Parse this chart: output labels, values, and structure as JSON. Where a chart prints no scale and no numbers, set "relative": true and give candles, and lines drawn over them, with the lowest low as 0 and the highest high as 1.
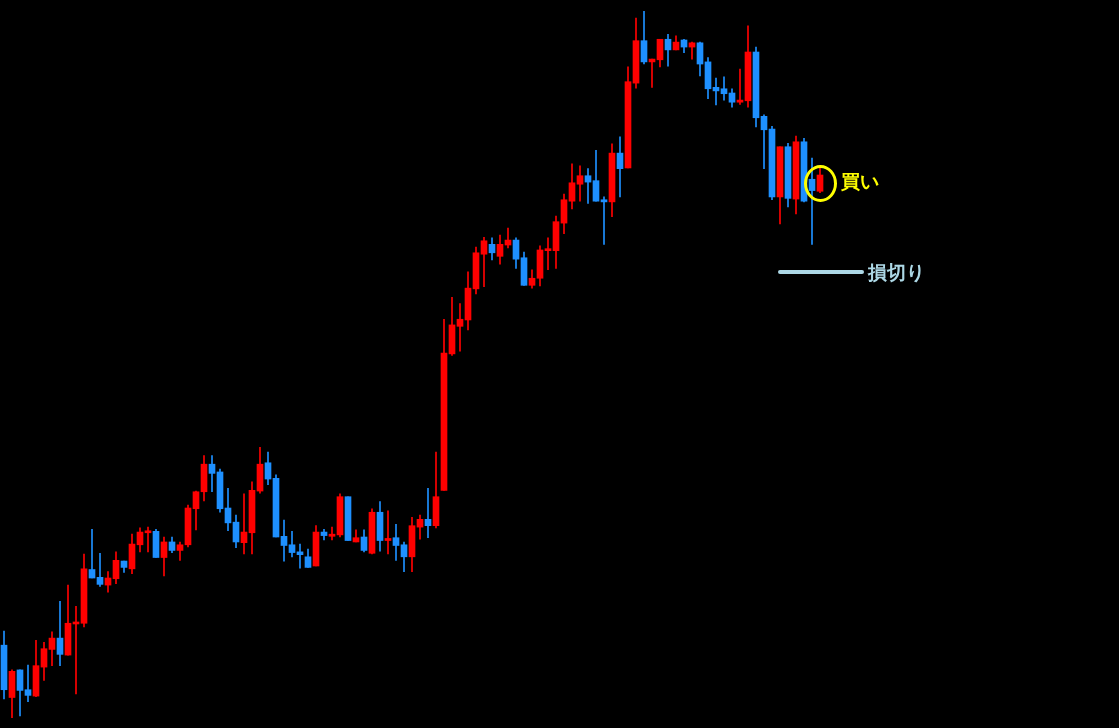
{
  "chart_data": {
    "type": "candlestick",
    "relative": true,
    "categories": [
      null,
      null,
      null,
      null,
      null,
      null,
      null,
      null,
      null,
      null,
      null,
      null,
      null,
      null,
      null,
      null,
      null,
      null,
      null,
      null,
      null,
      null,
      null,
      null,
      null,
      null,
      null,
      null,
      null,
      null,
      null,
      null,
      null,
      null,
      null,
      null,
      null,
      null,
      null,
      null,
      null,
      null,
      null,
      null,
      null,
      null,
      null,
      null,
      null,
      null,
      null,
      null,
      null,
      null,
      null,
      null,
      null,
      null,
      null,
      null,
      null,
      null,
      null,
      null,
      null,
      null,
      null,
      null,
      null,
      null,
      null,
      null,
      null,
      null,
      null,
      null,
      null,
      null,
      null,
      null,
      null,
      null,
      null,
      null,
      null,
      null,
      null,
      null,
      null,
      null,
      null,
      null,
      null,
      null,
      null,
      null,
      null,
      null,
      null,
      null,
      null,
      null,
      null
    ],
    "ohlc": [
      [
        0.103,
        0.123,
        0.027,
        0.04
      ],
      [
        0.029,
        0.068,
        0,
        0.066
      ],
      [
        0.068,
        0.068,
        0.003,
        0.039
      ],
      [
        0.04,
        0.075,
        0.023,
        0.032
      ],
      [
        0.031,
        0.11,
        0.03,
        0.074
      ],
      [
        0.072,
        0.107,
        0.053,
        0.098
      ],
      [
        0.097,
        0.122,
        0.074,
        0.113
      ],
      [
        0.113,
        0.165,
        0.074,
        0.09
      ],
      [
        0.089,
        0.188,
        0.089,
        0.134
      ],
      [
        0.133,
        0.158,
        0.034,
        0.134
      ],
      [
        0.134,
        0.232,
        0.129,
        0.211
      ],
      [
        0.21,
        0.267,
        0.198,
        0.198
      ],
      [
        0.199,
        0.233,
        0.186,
        0.189
      ],
      [
        0.188,
        0.207,
        0.178,
        0.198
      ],
      [
        0.197,
        0.235,
        0.19,
        0.223
      ],
      [
        0.222,
        0.222,
        0.206,
        0.213
      ],
      [
        0.211,
        0.26,
        0.204,
        0.246
      ],
      [
        0.245,
        0.269,
        0.235,
        0.263
      ],
      [
        0.262,
        0.27,
        0.235,
        0.264
      ],
      [
        0.264,
        0.267,
        0.227,
        0.227
      ],
      [
        0.227,
        0.256,
        0.201,
        0.249
      ],
      [
        0.249,
        0.256,
        0.234,
        0.237
      ],
      [
        0.237,
        0.249,
        0.223,
        0.245
      ],
      [
        0.245,
        0.301,
        0.242,
        0.297
      ],
      [
        0.296,
        0.321,
        0.266,
        0.32
      ],
      [
        0.32,
        0.371,
        0.307,
        0.359
      ],
      [
        0.359,
        0.371,
        0.32,
        0.346
      ],
      [
        0.348,
        0.352,
        0.291,
        0.296
      ],
      [
        0.297,
        0.325,
        0.265,
        0.276
      ],
      [
        0.277,
        0.287,
        0.241,
        0.249
      ],
      [
        0.248,
        0.317,
        0.232,
        0.263
      ],
      [
        0.262,
        0.334,
        0.232,
        0.322
      ],
      [
        0.321,
        0.383,
        0.318,
        0.359
      ],
      [
        0.361,
        0.376,
        0.33,
        0.338
      ],
      [
        0.339,
        0.344,
        0.256,
        0.256
      ],
      [
        0.257,
        0.28,
        0.222,
        0.244
      ],
      [
        0.245,
        0.264,
        0.228,
        0.234
      ],
      [
        0.235,
        0.246,
        0.212,
        0.231
      ],
      [
        0.228,
        0.239,
        0.213,
        0.213
      ],
      [
        0.215,
        0.272,
        0.215,
        0.263
      ],
      [
        0.263,
        0.267,
        0.252,
        0.258
      ],
      [
        0.257,
        0.27,
        0.252,
        0.26
      ],
      [
        0.259,
        0.317,
        0.256,
        0.313
      ],
      [
        0.313,
        0.313,
        0.251,
        0.251
      ],
      [
        0.249,
        0.266,
        0.249,
        0.255
      ],
      [
        0.256,
        0.266,
        0.235,
        0.237
      ],
      [
        0.233,
        0.296,
        0.232,
        0.291
      ],
      [
        0.291,
        0.306,
        0.236,
        0.251
      ],
      [
        0.251,
        0.293,
        0.232,
        0.254
      ],
      [
        0.255,
        0.274,
        0.223,
        0.244
      ],
      [
        0.245,
        0.249,
        0.207,
        0.228
      ],
      [
        0.228,
        0.284,
        0.207,
        0.272
      ],
      [
        0.27,
        0.287,
        0.253,
        0.281
      ],
      [
        0.281,
        0.325,
        0.255,
        0.272
      ],
      [
        0.272,
        0.376,
        0.269,
        0.313
      ],
      [
        0.322,
        0.564,
        0.322,
        0.516
      ],
      [
        0.515,
        0.595,
        0.513,
        0.556
      ],
      [
        0.554,
        0.586,
        0.519,
        0.564
      ],
      [
        0.563,
        0.631,
        0.549,
        0.608
      ],
      [
        0.607,
        0.666,
        0.6,
        0.658
      ],
      [
        0.656,
        0.68,
        0.61,
        0.675
      ],
      [
        0.67,
        0.679,
        0.648,
        0.658
      ],
      [
        0.653,
        0.683,
        0.642,
        0.67
      ],
      [
        0.669,
        0.693,
        0.665,
        0.676
      ],
      [
        0.676,
        0.679,
        0.636,
        0.649
      ],
      [
        0.651,
        0.659,
        0.612,
        0.612
      ],
      [
        0.612,
        0.634,
        0.608,
        0.622
      ],
      [
        0.622,
        0.668,
        0.611,
        0.662
      ],
      [
        0.661,
        0.679,
        0.634,
        0.662
      ],
      [
        0.661,
        0.71,
        0.636,
        0.702
      ],
      [
        0.7,
        0.741,
        0.685,
        0.733
      ],
      [
        0.731,
        0.784,
        0.72,
        0.757
      ],
      [
        0.755,
        0.781,
        0.731,
        0.767
      ],
      [
        0.767,
        0.777,
        0.728,
        0.758
      ],
      [
        0.76,
        0.803,
        0.731,
        0.731
      ],
      [
        0.733,
        0.737,
        0.67,
        0.73
      ],
      [
        0.73,
        0.812,
        0.709,
        0.799
      ],
      [
        0.799,
        0.822,
        0.737,
        0.777
      ],
      [
        0.778,
        0.921,
        0.778,
        0.9
      ],
      [
        0.898,
        0.99,
        0.891,
        0.958
      ],
      [
        0.958,
        1,
        0.925,
        0.928
      ],
      [
        0.928,
        0.932,
        0.892,
        0.932
      ],
      [
        0.931,
        0.96,
        0.921,
        0.96
      ],
      [
        0.96,
        0.967,
        0.922,
        0.945
      ],
      [
        0.945,
        0.965,
        0.945,
        0.956
      ],
      [
        0.959,
        0.96,
        0.941,
        0.949
      ],
      [
        0.949,
        0.956,
        0.932,
        0.955
      ],
      [
        0.955,
        0.956,
        0.908,
        0.925
      ],
      [
        0.928,
        0.934,
        0.876,
        0.89
      ],
      [
        0.892,
        0.905,
        0.867,
        0.887
      ],
      [
        0.89,
        0.907,
        0.874,
        0.883
      ],
      [
        0.884,
        0.89,
        0.864,
        0.871
      ],
      [
        0.871,
        0.918,
        0.868,
        0.874
      ],
      [
        0.873,
        0.979,
        0.864,
        0.942
      ],
      [
        0.942,
        0.949,
        0.836,
        0.849
      ],
      [
        0.851,
        0.853,
        0.777,
        0.832
      ],
      [
        0.833,
        0.837,
        0.733,
        0.737
      ],
      [
        0.737,
        0.808,
        0.699,
        0.808
      ],
      [
        0.808,
        0.813,
        0.723,
        0.735
      ],
      [
        0.734,
        0.823,
        0.713,
        0.815
      ],
      [
        0.815,
        0.82,
        0.73,
        0.731
      ],
      [
        0.762,
        0.792,
        0.67,
        0.746
      ],
      [
        0.745,
        0.778,
        0.743,
        0.768
      ]
    ],
    "colors": [
      "#1e90ff",
      "#ff0000",
      "#1e90ff",
      "#1e90ff",
      "#ff0000",
      "#ff0000",
      "#ff0000",
      "#1e90ff",
      "#ff0000",
      "#ff0000",
      "#ff0000",
      "#1e90ff",
      "#1e90ff",
      "#ff0000",
      "#ff0000",
      "#1e90ff",
      "#ff0000",
      "#ff0000",
      "#ff0000",
      "#1e90ff",
      "#ff0000",
      "#1e90ff",
      "#ff0000",
      "#ff0000",
      "#ff0000",
      "#ff0000",
      "#1e90ff",
      "#1e90ff",
      "#1e90ff",
      "#1e90ff",
      "#ff0000",
      "#ff0000",
      "#ff0000",
      "#1e90ff",
      "#1e90ff",
      "#1e90ff",
      "#1e90ff",
      "#1e90ff",
      "#1e90ff",
      "#ff0000",
      "#1e90ff",
      "#ff0000",
      "#ff0000",
      "#1e90ff",
      "#ff0000",
      "#1e90ff",
      "#ff0000",
      "#1e90ff",
      "#ff0000",
      "#1e90ff",
      "#1e90ff",
      "#ff0000",
      "#ff0000",
      "#1e90ff",
      "#ff0000",
      "#ff0000",
      "#ff0000",
      "#ff0000",
      "#ff0000",
      "#ff0000",
      "#ff0000",
      "#1e90ff",
      "#ff0000",
      "#ff0000",
      "#1e90ff",
      "#1e90ff",
      "#ff0000",
      "#ff0000",
      "#ff0000",
      "#ff0000",
      "#ff0000",
      "#ff0000",
      "#ff0000",
      "#1e90ff",
      "#1e90ff",
      "#1e90ff",
      "#ff0000",
      "#1e90ff",
      "#ff0000",
      "#ff0000",
      "#1e90ff",
      "#ff0000",
      "#ff0000",
      "#1e90ff",
      "#ff0000",
      "#1e90ff",
      "#ff0000",
      "#1e90ff",
      "#1e90ff",
      "#1e90ff",
      "#1e90ff",
      "#1e90ff",
      "#ff0000",
      "#ff0000",
      "#1e90ff",
      "#1e90ff",
      "#1e90ff",
      "#ff0000",
      "#1e90ff",
      "#ff0000",
      "#1e90ff",
      "#1e90ff",
      "#ff0000"
    ],
    "annotations": [
      "買い"
    ],
    "ref_lines": [
      {
        "axis": "y",
        "value": 0.631,
        "label": "損切り",
        "color": "#add8e6"
      }
    ]
  }
}
